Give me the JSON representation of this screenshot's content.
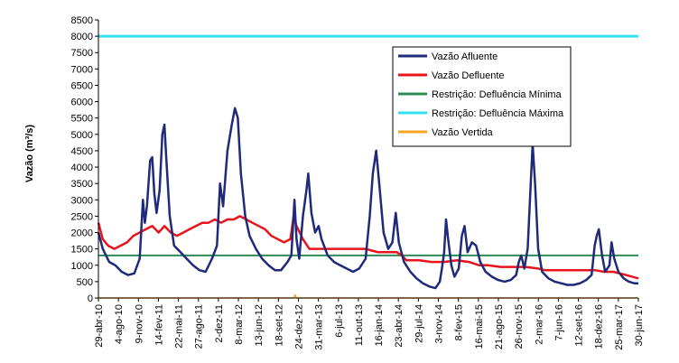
{
  "chart_data": {
    "type": "line",
    "ylabel": "Vazão (m³/s)",
    "ylim": [
      0,
      8500
    ],
    "yticks": [
      0,
      500,
      1000,
      1500,
      2000,
      2500,
      3000,
      3500,
      4000,
      4500,
      5000,
      5500,
      6000,
      6500,
      7000,
      7500,
      8000,
      8500
    ],
    "xlim": [
      "2010-04-29",
      "2017-06-30"
    ],
    "xticks": [
      {
        "date": "2010-04-29",
        "label": "29-abr-10"
      },
      {
        "date": "2010-08-04",
        "label": "4-ago-10"
      },
      {
        "date": "2010-11-09",
        "label": "9-nov-10"
      },
      {
        "date": "2011-02-14",
        "label": "14-fev-11"
      },
      {
        "date": "2011-05-22",
        "label": "22-mai-11"
      },
      {
        "date": "2011-08-27",
        "label": "27-ago-11"
      },
      {
        "date": "2011-12-02",
        "label": "2-dez-11"
      },
      {
        "date": "2012-03-08",
        "label": "8-mar-12"
      },
      {
        "date": "2012-06-13",
        "label": "13-jun-12"
      },
      {
        "date": "2012-09-18",
        "label": "18-set-12"
      },
      {
        "date": "2012-12-24",
        "label": "24-dez-12"
      },
      {
        "date": "2013-03-31",
        "label": "31-mar-13"
      },
      {
        "date": "2013-07-06",
        "label": "6-jul-13"
      },
      {
        "date": "2013-10-11",
        "label": "11-out-13"
      },
      {
        "date": "2014-01-16",
        "label": "16-jan-14"
      },
      {
        "date": "2014-04-23",
        "label": "23-abr-14"
      },
      {
        "date": "2014-07-29",
        "label": "29-jul-14"
      },
      {
        "date": "2014-11-03",
        "label": "3-nov-14"
      },
      {
        "date": "2015-02-08",
        "label": "8-fev-15"
      },
      {
        "date": "2015-05-16",
        "label": "16-mai-15"
      },
      {
        "date": "2015-08-21",
        "label": "21-ago-15"
      },
      {
        "date": "2015-11-26",
        "label": "26-nov-15"
      },
      {
        "date": "2016-03-02",
        "label": "2-mar-16"
      },
      {
        "date": "2016-06-07",
        "label": "7-jun-16"
      },
      {
        "date": "2016-09-12",
        "label": "12-set-16"
      },
      {
        "date": "2016-12-18",
        "label": "18-dez-16"
      },
      {
        "date": "2017-03-25",
        "label": "25-mar-17"
      },
      {
        "date": "2017-06-30",
        "label": "30-jun-17"
      }
    ],
    "grid": false,
    "legend": "top-right",
    "series": [
      {
        "name": "Vazão Afluente",
        "color": "#1f2a7a",
        "points": [
          [
            "2010-04-29",
            2000
          ],
          [
            "2010-05-20",
            1500
          ],
          [
            "2010-06-20",
            1100
          ],
          [
            "2010-07-20",
            1000
          ],
          [
            "2010-08-20",
            800
          ],
          [
            "2010-09-20",
            700
          ],
          [
            "2010-10-20",
            750
          ],
          [
            "2010-11-15",
            1200
          ],
          [
            "2010-12-01",
            3000
          ],
          [
            "2010-12-10",
            2300
          ],
          [
            "2010-12-20",
            2800
          ],
          [
            "2011-01-05",
            4200
          ],
          [
            "2011-01-15",
            4300
          ],
          [
            "2011-01-25",
            3200
          ],
          [
            "2011-02-05",
            2600
          ],
          [
            "2011-02-20",
            3300
          ],
          [
            "2011-03-05",
            5000
          ],
          [
            "2011-03-15",
            5300
          ],
          [
            "2011-03-25",
            4200
          ],
          [
            "2011-04-10",
            2500
          ],
          [
            "2011-05-01",
            1600
          ],
          [
            "2011-06-01",
            1400
          ],
          [
            "2011-07-01",
            1200
          ],
          [
            "2011-08-01",
            1000
          ],
          [
            "2011-09-01",
            850
          ],
          [
            "2011-10-01",
            800
          ],
          [
            "2011-11-01",
            1200
          ],
          [
            "2011-11-25",
            1600
          ],
          [
            "2011-12-10",
            3500
          ],
          [
            "2011-12-25",
            2800
          ],
          [
            "2012-01-15",
            4500
          ],
          [
            "2012-02-05",
            5300
          ],
          [
            "2012-02-20",
            5800
          ],
          [
            "2012-03-05",
            5500
          ],
          [
            "2012-03-20",
            3800
          ],
          [
            "2012-04-10",
            2500
          ],
          [
            "2012-05-01",
            1900
          ],
          [
            "2012-06-01",
            1500
          ],
          [
            "2012-07-01",
            1200
          ],
          [
            "2012-08-01",
            1000
          ],
          [
            "2012-09-01",
            850
          ],
          [
            "2012-10-01",
            850
          ],
          [
            "2012-11-01",
            1100
          ],
          [
            "2012-11-20",
            1300
          ],
          [
            "2012-12-05",
            3000
          ],
          [
            "2012-12-15",
            1800
          ],
          [
            "2012-12-28",
            1200
          ],
          [
            "2013-01-15",
            2500
          ],
          [
            "2013-02-01",
            3300
          ],
          [
            "2013-02-10",
            3800
          ],
          [
            "2013-02-25",
            2600
          ],
          [
            "2013-03-15",
            2000
          ],
          [
            "2013-04-01",
            2200
          ],
          [
            "2013-04-15",
            1800
          ],
          [
            "2013-05-15",
            1300
          ],
          [
            "2013-06-15",
            1100
          ],
          [
            "2013-07-15",
            1000
          ],
          [
            "2013-08-15",
            900
          ],
          [
            "2013-09-15",
            800
          ],
          [
            "2013-10-15",
            900
          ],
          [
            "2013-11-15",
            1200
          ],
          [
            "2013-12-05",
            2500
          ],
          [
            "2013-12-20",
            3800
          ],
          [
            "2014-01-05",
            4500
          ],
          [
            "2014-01-20",
            3500
          ],
          [
            "2014-02-10",
            2000
          ],
          [
            "2014-03-05",
            1500
          ],
          [
            "2014-03-25",
            1700
          ],
          [
            "2014-04-10",
            2600
          ],
          [
            "2014-04-25",
            1700
          ],
          [
            "2014-05-20",
            1100
          ],
          [
            "2014-06-20",
            800
          ],
          [
            "2014-07-20",
            600
          ],
          [
            "2014-08-20",
            450
          ],
          [
            "2014-09-20",
            350
          ],
          [
            "2014-10-20",
            300
          ],
          [
            "2014-11-10",
            500
          ],
          [
            "2014-11-20",
            900
          ],
          [
            "2014-12-01",
            1400
          ],
          [
            "2014-12-10",
            2400
          ],
          [
            "2014-12-20",
            1800
          ],
          [
            "2015-01-05",
            1000
          ],
          [
            "2015-01-20",
            650
          ],
          [
            "2015-02-10",
            900
          ],
          [
            "2015-02-25",
            1900
          ],
          [
            "2015-03-10",
            2200
          ],
          [
            "2015-03-25",
            1400
          ],
          [
            "2015-04-15",
            1700
          ],
          [
            "2015-05-05",
            1600
          ],
          [
            "2015-05-25",
            1100
          ],
          [
            "2015-06-20",
            800
          ],
          [
            "2015-07-20",
            650
          ],
          [
            "2015-08-20",
            550
          ],
          [
            "2015-09-20",
            500
          ],
          [
            "2015-10-20",
            550
          ],
          [
            "2015-11-15",
            700
          ],
          [
            "2015-11-28",
            1100
          ],
          [
            "2015-12-10",
            1300
          ],
          [
            "2015-12-25",
            900
          ],
          [
            "2016-01-10",
            1500
          ],
          [
            "2016-01-25",
            3500
          ],
          [
            "2016-02-03",
            4700
          ],
          [
            "2016-02-15",
            3500
          ],
          [
            "2016-03-01",
            1500
          ],
          [
            "2016-03-20",
            800
          ],
          [
            "2016-04-20",
            600
          ],
          [
            "2016-05-20",
            500
          ],
          [
            "2016-06-20",
            450
          ],
          [
            "2016-07-20",
            400
          ],
          [
            "2016-08-20",
            400
          ],
          [
            "2016-09-20",
            450
          ],
          [
            "2016-10-20",
            550
          ],
          [
            "2016-11-15",
            700
          ],
          [
            "2016-11-30",
            1600
          ],
          [
            "2016-12-10",
            1900
          ],
          [
            "2016-12-20",
            2100
          ],
          [
            "2017-01-05",
            1300
          ],
          [
            "2017-01-20",
            800
          ],
          [
            "2017-02-10",
            1000
          ],
          [
            "2017-02-20",
            1700
          ],
          [
            "2017-03-05",
            1200
          ],
          [
            "2017-03-25",
            800
          ],
          [
            "2017-04-20",
            600
          ],
          [
            "2017-05-15",
            500
          ],
          [
            "2017-06-10",
            450
          ],
          [
            "2017-06-30",
            450
          ]
        ]
      },
      {
        "name": "Vazão Defluente",
        "color": "#e8141c",
        "points": [
          [
            "2010-04-29",
            2300
          ],
          [
            "2010-05-20",
            1800
          ],
          [
            "2010-06-15",
            1600
          ],
          [
            "2010-07-15",
            1500
          ],
          [
            "2010-08-15",
            1600
          ],
          [
            "2010-09-15",
            1700
          ],
          [
            "2010-10-15",
            1900
          ],
          [
            "2010-11-15",
            2000
          ],
          [
            "2010-12-15",
            2100
          ],
          [
            "2011-01-15",
            2200
          ],
          [
            "2011-02-15",
            2000
          ],
          [
            "2011-03-15",
            2200
          ],
          [
            "2011-04-15",
            2000
          ],
          [
            "2011-05-15",
            1900
          ],
          [
            "2011-06-15",
            2000
          ],
          [
            "2011-07-15",
            2100
          ],
          [
            "2011-08-15",
            2200
          ],
          [
            "2011-09-15",
            2300
          ],
          [
            "2011-10-15",
            2300
          ],
          [
            "2011-11-15",
            2400
          ],
          [
            "2011-12-15",
            2300
          ],
          [
            "2012-01-15",
            2400
          ],
          [
            "2012-02-15",
            2400
          ],
          [
            "2012-03-15",
            2500
          ],
          [
            "2012-04-15",
            2400
          ],
          [
            "2012-05-15",
            2300
          ],
          [
            "2012-06-15",
            2200
          ],
          [
            "2012-07-15",
            2100
          ],
          [
            "2012-08-15",
            1900
          ],
          [
            "2012-09-15",
            1800
          ],
          [
            "2012-10-15",
            1700
          ],
          [
            "2012-11-15",
            1800
          ],
          [
            "2012-12-01",
            2500
          ],
          [
            "2012-12-15",
            2200
          ],
          [
            "2013-01-15",
            1800
          ],
          [
            "2013-02-15",
            1500
          ],
          [
            "2013-03-15",
            1500
          ],
          [
            "2013-04-15",
            1500
          ],
          [
            "2013-05-15",
            1500
          ],
          [
            "2013-06-15",
            1500
          ],
          [
            "2013-07-15",
            1500
          ],
          [
            "2013-08-15",
            1500
          ],
          [
            "2013-09-15",
            1500
          ],
          [
            "2013-10-15",
            1500
          ],
          [
            "2013-11-15",
            1500
          ],
          [
            "2013-12-15",
            1450
          ],
          [
            "2014-01-15",
            1400
          ],
          [
            "2014-02-15",
            1400
          ],
          [
            "2014-03-15",
            1400
          ],
          [
            "2014-04-15",
            1400
          ],
          [
            "2014-05-10",
            1300
          ],
          [
            "2014-06-01",
            1150
          ],
          [
            "2014-08-01",
            1150
          ],
          [
            "2014-10-01",
            1100
          ],
          [
            "2014-12-01",
            1100
          ],
          [
            "2015-02-01",
            1150
          ],
          [
            "2015-04-01",
            1100
          ],
          [
            "2015-05-20",
            1000
          ],
          [
            "2015-07-01",
            1000
          ],
          [
            "2015-09-01",
            950
          ],
          [
            "2015-11-01",
            950
          ],
          [
            "2016-01-01",
            950
          ],
          [
            "2016-03-01",
            900
          ],
          [
            "2016-04-01",
            850
          ],
          [
            "2016-06-01",
            850
          ],
          [
            "2016-08-01",
            850
          ],
          [
            "2016-10-01",
            850
          ],
          [
            "2016-12-01",
            850
          ],
          [
            "2017-01-15",
            800
          ],
          [
            "2017-03-01",
            800
          ],
          [
            "2017-05-01",
            700
          ],
          [
            "2017-06-30",
            600
          ]
        ]
      },
      {
        "name": "Restrição: Defluência Mínima",
        "color": "#2e8b57",
        "points": [
          [
            "2010-04-29",
            1300
          ],
          [
            "2017-06-30",
            1300
          ]
        ]
      },
      {
        "name": "Restrição: Defluência Máxima",
        "color": "#33e0ee",
        "points": [
          [
            "2010-04-29",
            8000
          ],
          [
            "2017-06-30",
            8000
          ]
        ]
      },
      {
        "name": "Vazão Vertida",
        "color": "#f5a623",
        "points": [
          [
            "2010-04-29",
            0
          ],
          [
            "2012-12-01",
            0
          ],
          [
            "2012-12-08",
            100
          ],
          [
            "2012-12-15",
            0
          ],
          [
            "2017-06-30",
            0
          ]
        ]
      }
    ]
  }
}
